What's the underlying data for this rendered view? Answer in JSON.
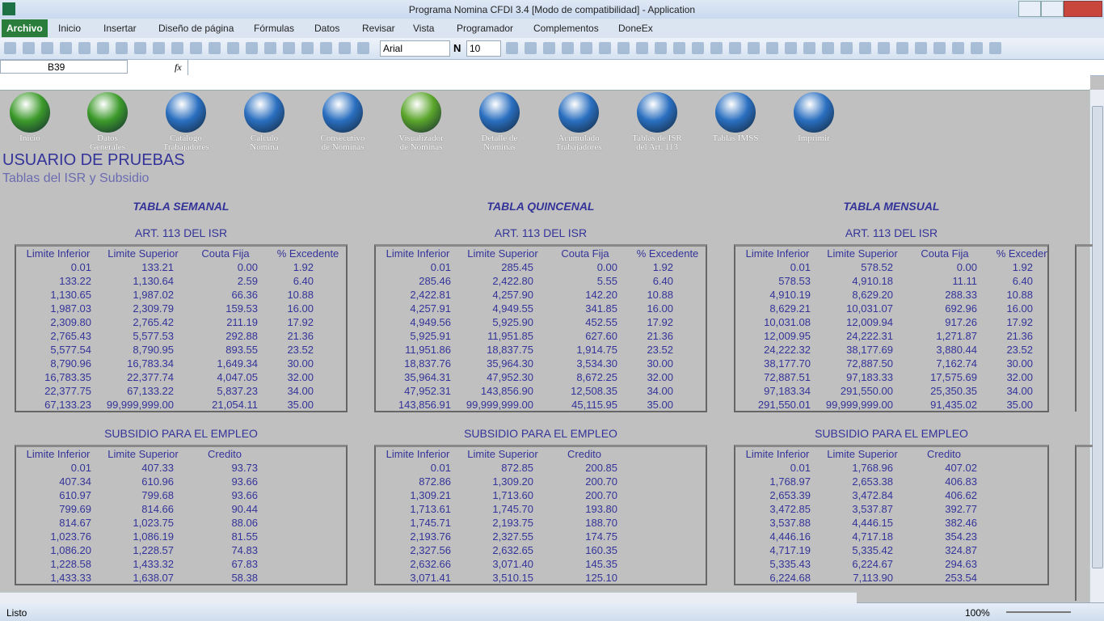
{
  "window": {
    "title": "Programa Nomina CFDI 3.4  [Modo de compatibilidad] - Application"
  },
  "menu": [
    "Archivo",
    "Inicio",
    "Insertar",
    "Diseño de página",
    "Fórmulas",
    "Datos",
    "Revisar",
    "Vista",
    "Programador",
    "Complementos",
    "DoneEx"
  ],
  "toolbar": {
    "font": "Arial",
    "size": "10",
    "bold": "N"
  },
  "formula_bar": {
    "name_box": "B39",
    "fx": "fx"
  },
  "nav": [
    {
      "lines": [
        "Inicio"
      ]
    },
    {
      "lines": [
        "Datos",
        "Generales"
      ]
    },
    {
      "lines": [
        "Catálogo",
        "Trabajadores"
      ]
    },
    {
      "lines": [
        "Calculo",
        "Nómina"
      ]
    },
    {
      "lines": [
        "Consecutivo",
        "de Nóminas"
      ]
    },
    {
      "lines": [
        "Visualizador",
        "de Nóminas"
      ]
    },
    {
      "lines": [
        "Detalle  de",
        "Nóminas"
      ]
    },
    {
      "lines": [
        "Acumulado",
        "Trabajadores"
      ]
    },
    {
      "lines": [
        "Tablas de ISR",
        "del Art. 113"
      ]
    },
    {
      "lines": [
        "Tablas IMSS"
      ]
    },
    {
      "lines": [
        "Imprimir"
      ]
    }
  ],
  "header": {
    "user": "USUARIO DE PRUEBAS",
    "subtitle": "Tablas del ISR y Subsidio"
  },
  "sections": [
    {
      "title": "TABLA SEMANAL",
      "isr": {
        "title": "ART. 113 DEL ISR",
        "headers": [
          "Limite Inferior",
          "Limite Superior",
          "Couta Fija",
          "% Excedente"
        ],
        "rows": [
          [
            "0.01",
            "133.21",
            "0.00",
            "1.92"
          ],
          [
            "133.22",
            "1,130.64",
            "2.59",
            "6.40"
          ],
          [
            "1,130.65",
            "1,987.02",
            "66.36",
            "10.88"
          ],
          [
            "1,987.03",
            "2,309.79",
            "159.53",
            "16.00"
          ],
          [
            "2,309.80",
            "2,765.42",
            "211.19",
            "17.92"
          ],
          [
            "2,765.43",
            "5,577.53",
            "292.88",
            "21.36"
          ],
          [
            "5,577.54",
            "8,790.95",
            "893.55",
            "23.52"
          ],
          [
            "8,790.96",
            "16,783.34",
            "1,649.34",
            "30.00"
          ],
          [
            "16,783.35",
            "22,377.74",
            "4,047.05",
            "32.00"
          ],
          [
            "22,377.75",
            "67,133.22",
            "5,837.23",
            "34.00"
          ],
          [
            "67,133.23",
            "99,999,999.00",
            "21,054.11",
            "35.00"
          ]
        ]
      },
      "subsidio": {
        "title": "SUBSIDIO PARA EL EMPLEO",
        "headers": [
          "Limite Inferior",
          "Limite Superior",
          "Credito"
        ],
        "rows": [
          [
            "0.01",
            "407.33",
            "93.73"
          ],
          [
            "407.34",
            "610.96",
            "93.66"
          ],
          [
            "610.97",
            "799.68",
            "93.66"
          ],
          [
            "799.69",
            "814.66",
            "90.44"
          ],
          [
            "814.67",
            "1,023.75",
            "88.06"
          ],
          [
            "1,023.76",
            "1,086.19",
            "81.55"
          ],
          [
            "1,086.20",
            "1,228.57",
            "74.83"
          ],
          [
            "1,228.58",
            "1,433.32",
            "67.83"
          ],
          [
            "1,433.33",
            "1,638.07",
            "58.38"
          ]
        ]
      }
    },
    {
      "title": "TABLA QUINCENAL",
      "isr": {
        "title": "ART. 113 DEL ISR",
        "headers": [
          "Limite Inferior",
          "Limite Superior",
          "Couta Fija",
          "% Excedente"
        ],
        "rows": [
          [
            "0.01",
            "285.45",
            "0.00",
            "1.92"
          ],
          [
            "285.46",
            "2,422.80",
            "5.55",
            "6.40"
          ],
          [
            "2,422.81",
            "4,257.90",
            "142.20",
            "10.88"
          ],
          [
            "4,257.91",
            "4,949.55",
            "341.85",
            "16.00"
          ],
          [
            "4,949.56",
            "5,925.90",
            "452.55",
            "17.92"
          ],
          [
            "5,925.91",
            "11,951.85",
            "627.60",
            "21.36"
          ],
          [
            "11,951.86",
            "18,837.75",
            "1,914.75",
            "23.52"
          ],
          [
            "18,837.76",
            "35,964.30",
            "3,534.30",
            "30.00"
          ],
          [
            "35,964.31",
            "47,952.30",
            "8,672.25",
            "32.00"
          ],
          [
            "47,952.31",
            "143,856.90",
            "12,508.35",
            "34.00"
          ],
          [
            "143,856.91",
            "99,999,999.00",
            "45,115.95",
            "35.00"
          ]
        ]
      },
      "subsidio": {
        "title": "SUBSIDIO PARA EL EMPLEO",
        "headers": [
          "Limite Inferior",
          "Limite Superior",
          "Credito"
        ],
        "rows": [
          [
            "0.01",
            "872.85",
            "200.85"
          ],
          [
            "872.86",
            "1,309.20",
            "200.70"
          ],
          [
            "1,309.21",
            "1,713.60",
            "200.70"
          ],
          [
            "1,713.61",
            "1,745.70",
            "193.80"
          ],
          [
            "1,745.71",
            "2,193.75",
            "188.70"
          ],
          [
            "2,193.76",
            "2,327.55",
            "174.75"
          ],
          [
            "2,327.56",
            "2,632.65",
            "160.35"
          ],
          [
            "2,632.66",
            "3,071.40",
            "145.35"
          ],
          [
            "3,071.41",
            "3,510.15",
            "125.10"
          ]
        ]
      }
    },
    {
      "title": "TABLA MENSUAL",
      "isr": {
        "title": "ART. 113 DEL ISR",
        "headers": [
          "Limite Inferior",
          "Limite Superior",
          "Couta Fija",
          "% Excedente"
        ],
        "rows": [
          [
            "0.01",
            "578.52",
            "0.00",
            "1.92"
          ],
          [
            "578.53",
            "4,910.18",
            "11.11",
            "6.40"
          ],
          [
            "4,910.19",
            "8,629.20",
            "288.33",
            "10.88"
          ],
          [
            "8,629.21",
            "10,031.07",
            "692.96",
            "16.00"
          ],
          [
            "10,031.08",
            "12,009.94",
            "917.26",
            "17.92"
          ],
          [
            "12,009.95",
            "24,222.31",
            "1,271.87",
            "21.36"
          ],
          [
            "24,222.32",
            "38,177.69",
            "3,880.44",
            "23.52"
          ],
          [
            "38,177.70",
            "72,887.50",
            "7,162.74",
            "30.00"
          ],
          [
            "72,887.51",
            "97,183.33",
            "17,575.69",
            "32.00"
          ],
          [
            "97,183.34",
            "291,550.00",
            "25,350.35",
            "34.00"
          ],
          [
            "291,550.01",
            "99,999,999.00",
            "91,435.02",
            "35.00"
          ]
        ]
      },
      "subsidio": {
        "title": "SUBSIDIO PARA EL EMPLEO",
        "headers": [
          "Limite Inferior",
          "Limite Superior",
          "Credito"
        ],
        "rows": [
          [
            "0.01",
            "1,768.96",
            "407.02"
          ],
          [
            "1,768.97",
            "2,653.38",
            "406.83"
          ],
          [
            "2,653.39",
            "3,472.84",
            "406.62"
          ],
          [
            "3,472.85",
            "3,537.87",
            "392.77"
          ],
          [
            "3,537.88",
            "4,446.15",
            "382.46"
          ],
          [
            "4,446.16",
            "4,717.18",
            "354.23"
          ],
          [
            "4,717.19",
            "5,335.42",
            "324.87"
          ],
          [
            "5,335.43",
            "6,224.67",
            "294.63"
          ],
          [
            "6,224.68",
            "7,113.90",
            "253.54"
          ]
        ]
      }
    }
  ],
  "status": {
    "ready": "Listo",
    "zoom": "100%"
  }
}
